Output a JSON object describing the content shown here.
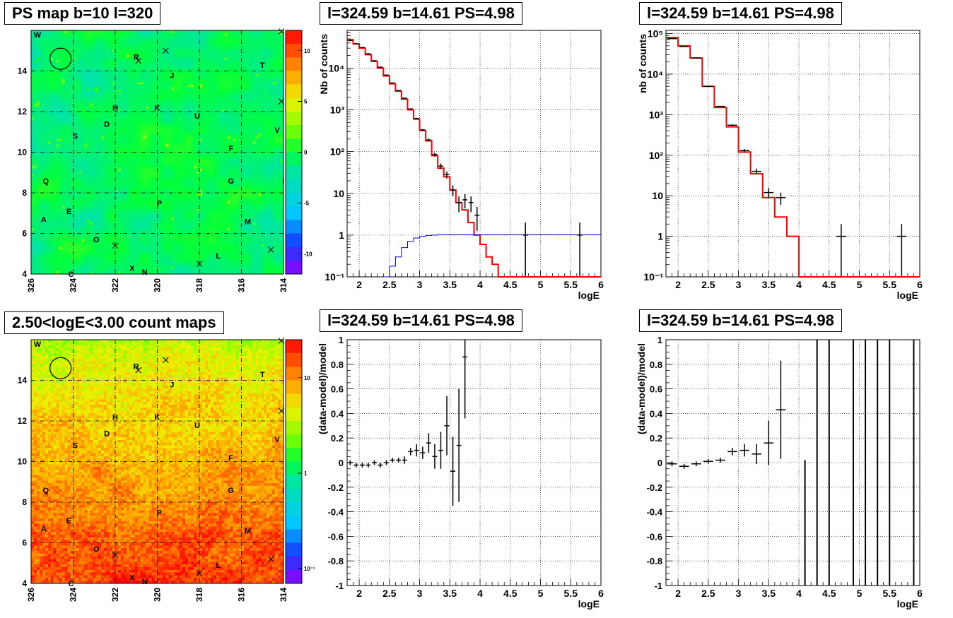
{
  "colors": {
    "model": "#ff0000",
    "background_model": "#0000cc",
    "data": "#000000",
    "marker": "#000000"
  },
  "panels": {
    "ps_map": {
      "title": "PS map b=10 l=320"
    },
    "count_map": {
      "title": "2.50<logE<3.00 count maps"
    },
    "spectrum_fine": {
      "title": "l=324.59 b=14.61 PS=4.98"
    },
    "spectrum_coarse": {
      "title": "l=324.59 b=14.61 PS=4.98"
    },
    "residual_fine": {
      "title": "l=324.59 b=14.61 PS=4.98"
    },
    "residual_coarse": {
      "title": "l=324.59 b=14.61 PS=4.98"
    }
  },
  "chart_data": [
    {
      "id": "ps_map",
      "type": "heatmap",
      "title": "PS map b=10 l=320",
      "x_ticks": [
        "326",
        "324",
        "322",
        "320",
        "318",
        "316",
        "314"
      ],
      "xlim": [
        326,
        314
      ],
      "y_ticks": [
        "4",
        "6",
        "8",
        "10",
        "12",
        "14"
      ],
      "ylim": [
        4,
        16
      ],
      "colorscale": "linear",
      "colorbar_ticks": [
        "10",
        "5",
        "0",
        "-5",
        "-10"
      ],
      "colorbar_range": [
        -12,
        12
      ],
      "dominant_level": 1,
      "sources": [
        {
          "label": "W",
          "l": 325.7,
          "b": 15.8
        },
        {
          "label": "R",
          "l": 321.0,
          "b": 14.7
        },
        {
          "label": "T",
          "l": 315.0,
          "b": 14.3
        },
        {
          "label": "J",
          "l": 319.3,
          "b": 13.8
        },
        {
          "label": "H",
          "l": 322.0,
          "b": 12.2
        },
        {
          "label": "K",
          "l": 320.0,
          "b": 12.2
        },
        {
          "label": "U",
          "l": 318.1,
          "b": 11.8
        },
        {
          "label": "D",
          "l": 322.4,
          "b": 11.4
        },
        {
          "label": "V",
          "l": 314.3,
          "b": 11.1
        },
        {
          "label": "S",
          "l": 323.9,
          "b": 10.8
        },
        {
          "label": "F",
          "l": 316.5,
          "b": 10.2
        },
        {
          "label": "Q",
          "l": 325.3,
          "b": 8.6
        },
        {
          "label": "G",
          "l": 316.5,
          "b": 8.6
        },
        {
          "label": "I",
          "l": 314.0,
          "b": 8.6
        },
        {
          "label": "P",
          "l": 319.9,
          "b": 7.5
        },
        {
          "label": "E",
          "l": 324.2,
          "b": 7.1
        },
        {
          "label": "A",
          "l": 325.4,
          "b": 6.7
        },
        {
          "label": "M",
          "l": 315.7,
          "b": 6.6
        },
        {
          "label": "O",
          "l": 322.9,
          "b": 5.7
        },
        {
          "label": "L",
          "l": 317.1,
          "b": 4.9
        },
        {
          "label": "X",
          "l": 321.2,
          "b": 4.3
        },
        {
          "label": "N",
          "l": 320.6,
          "b": 4.1
        },
        {
          "label": "C",
          "l": 324.1,
          "b": 4.0
        }
      ],
      "crosses": [
        {
          "l": 314.1,
          "b": 15.95
        },
        {
          "l": 319.6,
          "b": 15.0
        },
        {
          "l": 320.9,
          "b": 14.5
        },
        {
          "l": 314.1,
          "b": 12.5
        },
        {
          "l": 322.0,
          "b": 5.4
        },
        {
          "l": 314.6,
          "b": 5.2
        },
        {
          "l": 318.0,
          "b": 4.5
        }
      ],
      "circle": {
        "l": 324.6,
        "b": 14.6
      }
    },
    {
      "id": "count_map",
      "type": "heatmap",
      "title": "2.50<logE<3.00 count maps",
      "x_ticks": [
        "326",
        "324",
        "322",
        "320",
        "318",
        "316",
        "314"
      ],
      "xlim": [
        326,
        314
      ],
      "y_ticks": [
        "4",
        "6",
        "8",
        "10",
        "12",
        "14"
      ],
      "ylim": [
        4,
        16
      ],
      "colorscale": "log",
      "colorbar_ticks": [
        "10",
        "1",
        "10⁻¹"
      ],
      "colorbar_range": [
        0.07,
        25
      ],
      "gradient": "counts increase toward low b",
      "sources": [
        {
          "label": "W",
          "l": 325.7,
          "b": 15.8
        },
        {
          "label": "R",
          "l": 321.0,
          "b": 14.7
        },
        {
          "label": "T",
          "l": 315.0,
          "b": 14.3
        },
        {
          "label": "J",
          "l": 319.3,
          "b": 13.8
        },
        {
          "label": "H",
          "l": 322.0,
          "b": 12.2
        },
        {
          "label": "K",
          "l": 320.0,
          "b": 12.2
        },
        {
          "label": "U",
          "l": 318.1,
          "b": 11.8
        },
        {
          "label": "D",
          "l": 322.4,
          "b": 11.4
        },
        {
          "label": "V",
          "l": 314.3,
          "b": 11.1
        },
        {
          "label": "S",
          "l": 323.9,
          "b": 10.8
        },
        {
          "label": "F",
          "l": 316.5,
          "b": 10.2
        },
        {
          "label": "Q",
          "l": 325.3,
          "b": 8.6
        },
        {
          "label": "G",
          "l": 316.5,
          "b": 8.6
        },
        {
          "label": "I",
          "l": 314.0,
          "b": 8.6
        },
        {
          "label": "P",
          "l": 319.9,
          "b": 7.5
        },
        {
          "label": "E",
          "l": 324.2,
          "b": 7.1
        },
        {
          "label": "A",
          "l": 325.4,
          "b": 6.7
        },
        {
          "label": "M",
          "l": 315.7,
          "b": 6.6
        },
        {
          "label": "O",
          "l": 322.9,
          "b": 5.7
        },
        {
          "label": "L",
          "l": 317.1,
          "b": 4.9
        },
        {
          "label": "X",
          "l": 321.2,
          "b": 4.3
        },
        {
          "label": "N",
          "l": 320.6,
          "b": 4.1
        },
        {
          "label": "C",
          "l": 324.1,
          "b": 4.0
        }
      ],
      "crosses": [
        {
          "l": 314.1,
          "b": 15.95
        },
        {
          "l": 319.6,
          "b": 15.0
        },
        {
          "l": 320.9,
          "b": 14.5
        },
        {
          "l": 314.1,
          "b": 12.5
        },
        {
          "l": 322.0,
          "b": 5.4
        },
        {
          "l": 314.6,
          "b": 5.2
        },
        {
          "l": 318.0,
          "b": 4.5
        }
      ],
      "circle": {
        "l": 324.6,
        "b": 14.6
      }
    },
    {
      "id": "spectrum_fine",
      "type": "line",
      "title": "l=324.59 b=14.61 PS=4.98",
      "xlabel": "logE",
      "ylabel": "Nb of counts",
      "xlim": [
        1.8,
        6.0
      ],
      "ylim": [
        0.1,
        80000
      ],
      "yscale": "log",
      "x_ticks": [
        "2",
        "2.5",
        "3",
        "3.5",
        "4",
        "4.5",
        "5",
        "5.5",
        "6"
      ],
      "y_ticks": [
        "10⁻¹",
        "1",
        "10",
        "10²",
        "10³",
        "10⁴"
      ],
      "bin_width": 0.1,
      "series": [
        {
          "name": "",
          "kind": "histogram",
          "color": "red",
          "x_left": [
            1.8,
            1.9,
            2.0,
            2.1,
            2.2,
            2.3,
            2.4,
            2.5,
            2.6,
            2.7,
            2.8,
            2.9,
            3.0,
            3.1,
            3.2,
            3.3,
            3.4,
            3.5,
            3.6,
            3.7,
            3.8,
            3.9,
            4.0,
            4.1,
            4.2,
            4.3,
            4.4
          ],
          "values": [
            48000,
            38000,
            30000,
            21000,
            14500,
            10000,
            6500,
            4200,
            2800,
            1800,
            1000,
            600,
            320,
            180,
            80,
            40,
            25,
            12,
            6,
            4,
            2,
            1,
            0.6,
            0.3,
            0.2,
            0.1,
            0.1
          ]
        },
        {
          "name": "",
          "kind": "histogram",
          "color": "blue",
          "x_left": [
            2.4,
            2.5,
            2.6,
            2.7,
            2.8,
            2.9,
            3.0,
            3.1,
            3.2,
            3.3,
            3.4,
            3.5,
            3.6,
            3.7,
            3.8,
            3.9,
            4.0,
            4.1,
            4.2,
            4.3,
            4.4,
            4.5,
            4.6,
            4.7,
            4.8,
            4.9,
            5.0,
            5.1,
            5.2,
            5.3,
            5.4,
            5.5,
            5.6,
            5.7,
            5.8,
            5.9
          ],
          "values": [
            0.1,
            0.18,
            0.3,
            0.5,
            0.7,
            0.85,
            0.93,
            0.98,
            1.0,
            1.02,
            1.02,
            1.02,
            1.02,
            1.02,
            1.02,
            1.02,
            1.02,
            1.02,
            1.02,
            1.02,
            1.02,
            1.02,
            1.02,
            1.02,
            1.02,
            1.02,
            1.02,
            1.02,
            1.02,
            1.02,
            1.02,
            1.02,
            1.02,
            1.02,
            1.02,
            1.02
          ]
        },
        {
          "name": "",
          "kind": "points",
          "color": "black",
          "points": [
            [
              1.85,
              46000
            ],
            [
              1.95,
              38000
            ],
            [
              2.05,
              31000
            ],
            [
              2.15,
              22000
            ],
            [
              2.25,
              15000
            ],
            [
              2.35,
              10500
            ],
            [
              2.45,
              6800
            ],
            [
              2.55,
              4400
            ],
            [
              2.65,
              2900
            ],
            [
              2.75,
              1900
            ],
            [
              2.85,
              1050
            ],
            [
              2.95,
              620
            ],
            [
              3.05,
              330
            ],
            [
              3.15,
              190
            ],
            [
              3.25,
              85
            ],
            [
              3.35,
              45
            ],
            [
              3.45,
              28
            ],
            [
              3.55,
              12
            ],
            [
              3.65,
              6
            ],
            [
              3.75,
              7
            ],
            [
              3.85,
              6
            ],
            [
              3.95,
              3
            ],
            [
              4.75,
              1
            ],
            [
              5.65,
              1
            ]
          ]
        }
      ]
    },
    {
      "id": "spectrum_coarse",
      "type": "line",
      "title": "l=324.59 b=14.61 PS=4.98",
      "xlabel": "logE",
      "ylabel": "nb of counts",
      "xlim": [
        1.8,
        6.0
      ],
      "ylim": [
        0.1,
        120000
      ],
      "yscale": "log",
      "x_ticks": [
        "2",
        "2.5",
        "3",
        "3.5",
        "4",
        "4.5",
        "5",
        "5.5",
        "6"
      ],
      "y_ticks": [
        "10⁻¹",
        "1",
        "10",
        "10²",
        "10³",
        "10⁴",
        "10⁵"
      ],
      "bin_width": 0.2,
      "series": [
        {
          "name": "",
          "kind": "histogram",
          "color": "red",
          "x_left": [
            1.8,
            2.0,
            2.2,
            2.4,
            2.6,
            2.8,
            3.0,
            3.2,
            3.4,
            3.6,
            3.8,
            4.0,
            4.2,
            4.4
          ],
          "values": [
            80000,
            50000,
            25000,
            5000,
            1500,
            500,
            120,
            35,
            9,
            3,
            1,
            0.1,
            0.1,
            0.1
          ]
        },
        {
          "name": "",
          "kind": "points",
          "color": "black",
          "points": [
            [
              1.9,
              75000
            ],
            [
              2.1,
              48000
            ],
            [
              2.3,
              25000
            ],
            [
              2.5,
              5000
            ],
            [
              2.7,
              1600
            ],
            [
              2.9,
              550
            ],
            [
              3.1,
              130
            ],
            [
              3.3,
              40
            ],
            [
              3.5,
              12
            ],
            [
              3.7,
              9
            ],
            [
              4.7,
              1
            ],
            [
              5.7,
              1
            ]
          ]
        }
      ]
    },
    {
      "id": "residual_fine",
      "type": "scatter",
      "title": "l=324.59 b=14.61 PS=4.98",
      "xlabel": "logE",
      "ylabel": "(data-model)/model",
      "xlim": [
        1.8,
        6.0
      ],
      "ylim": [
        -1,
        1
      ],
      "x_ticks": [
        "2",
        "2.5",
        "3",
        "3.5",
        "4",
        "4.5",
        "5",
        "5.5",
        "6"
      ],
      "y_ticks": [
        "1",
        "0.8",
        "0.6",
        "0.4",
        "0.2",
        "0",
        "-0.2",
        "-0.4",
        "-0.6",
        "-0.8",
        "-1"
      ],
      "series": [
        {
          "name": "",
          "color": "black",
          "xerr": 0.05,
          "points": [
            [
              1.85,
              0,
              0.02
            ],
            [
              1.95,
              -0.02,
              0.02
            ],
            [
              2.05,
              -0.02,
              0.02
            ],
            [
              2.15,
              -0.02,
              0.02
            ],
            [
              2.25,
              0,
              0.02
            ],
            [
              2.35,
              -0.02,
              0.02
            ],
            [
              2.45,
              0,
              0.02
            ],
            [
              2.55,
              0.02,
              0.02
            ],
            [
              2.65,
              0.02,
              0.02
            ],
            [
              2.75,
              0.02,
              0.03
            ],
            [
              2.85,
              0.09,
              0.03
            ],
            [
              2.95,
              0.1,
              0.05
            ],
            [
              3.05,
              0.08,
              0.05
            ],
            [
              3.15,
              0.16,
              0.08
            ],
            [
              3.25,
              0.05,
              0.1
            ],
            [
              3.35,
              0.1,
              0.15
            ],
            [
              3.45,
              0.3,
              0.24
            ],
            [
              3.55,
              -0.07,
              0.28
            ],
            [
              3.65,
              0.14,
              0.46
            ],
            [
              3.75,
              0.86,
              0.5
            ]
          ]
        }
      ]
    },
    {
      "id": "residual_coarse",
      "type": "scatter",
      "title": "l=324.59 b=14.61 PS=4.98",
      "xlabel": "logE",
      "ylabel": "(data-model)/model",
      "xlim": [
        1.8,
        6.0
      ],
      "ylim": [
        -1,
        1
      ],
      "x_ticks": [
        "2",
        "2.5",
        "3",
        "3.5",
        "4",
        "4.5",
        "5",
        "5.5",
        "6"
      ],
      "y_ticks": [
        "1",
        "0.8",
        "0.6",
        "0.4",
        "0.2",
        "0",
        "-0.2",
        "-0.4",
        "-0.6",
        "-0.8",
        "-1"
      ],
      "series": [
        {
          "name": "",
          "color": "black",
          "xerr": 0.1,
          "points": [
            [
              1.9,
              -0.01,
              0.02
            ],
            [
              2.1,
              -0.03,
              0.02
            ],
            [
              2.3,
              -0.01,
              0.02
            ],
            [
              2.5,
              0.01,
              0.02
            ],
            [
              2.7,
              0.02,
              0.02
            ],
            [
              2.9,
              0.09,
              0.03
            ],
            [
              3.1,
              0.1,
              0.05
            ],
            [
              3.3,
              0.07,
              0.08
            ],
            [
              3.5,
              0.16,
              0.18
            ],
            [
              3.7,
              0.43,
              0.4
            ]
          ]
        }
      ],
      "vertical_bars": [
        [
          4.1,
          -1.0,
          0.02
        ],
        [
          4.3,
          -1.0,
          1.0
        ],
        [
          4.5,
          -1.0,
          1.0
        ],
        [
          4.9,
          -1.0,
          1.0
        ],
        [
          5.1,
          -1.0,
          1.0
        ],
        [
          5.3,
          -1.0,
          1.0
        ],
        [
          5.5,
          -1.0,
          1.0
        ],
        [
          5.9,
          -1.0,
          1.0
        ]
      ]
    }
  ]
}
